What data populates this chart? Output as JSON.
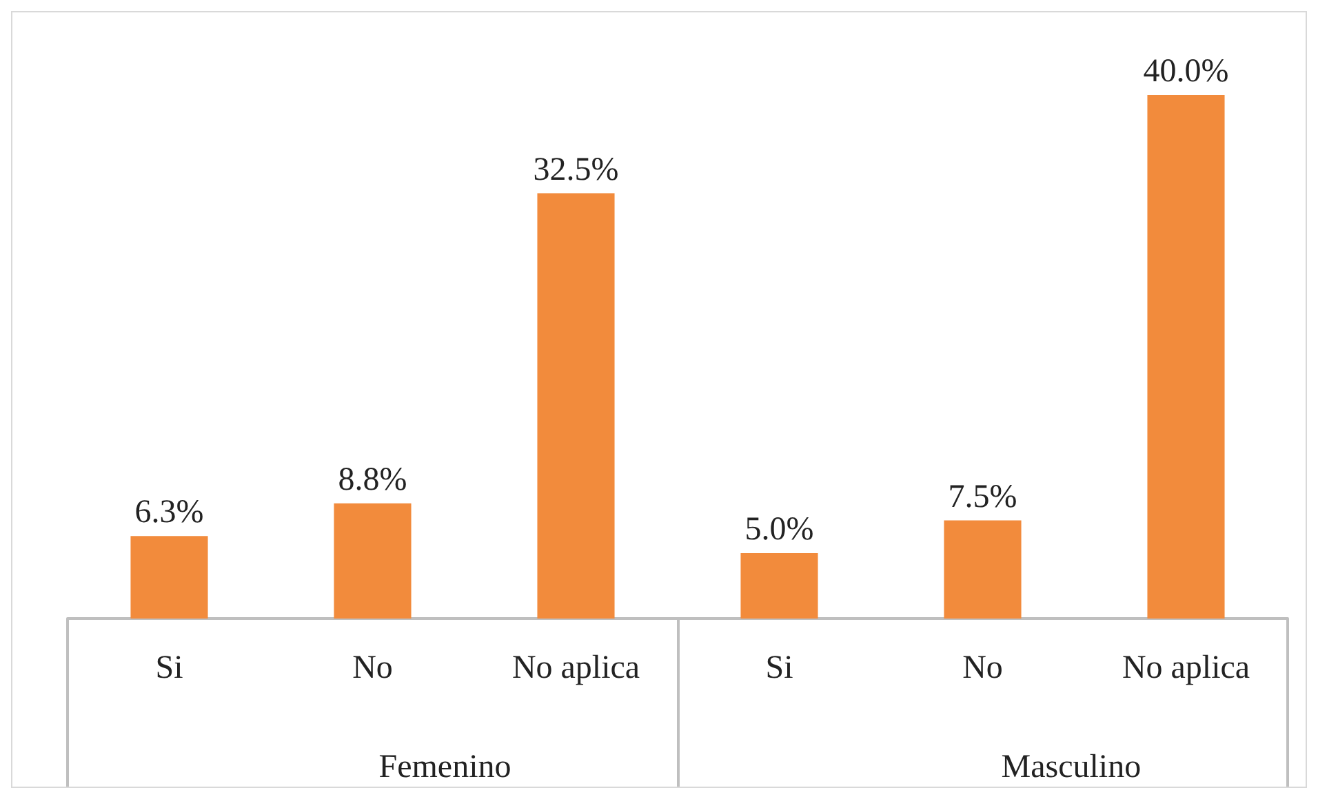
{
  "chart_data": {
    "type": "bar",
    "categories": [
      "Si",
      "No",
      "No aplica",
      "Si",
      "No",
      "No aplica"
    ],
    "values": [
      6.3,
      8.8,
      32.5,
      5.0,
      7.5,
      40.0
    ],
    "value_labels": [
      "6.3%",
      "8.8%",
      "32.5%",
      "5.0%",
      "7.5%",
      "40.0%"
    ],
    "color": "#f28b3c",
    "annotations": [
      "Femenino",
      "Masculino"
    ]
  }
}
